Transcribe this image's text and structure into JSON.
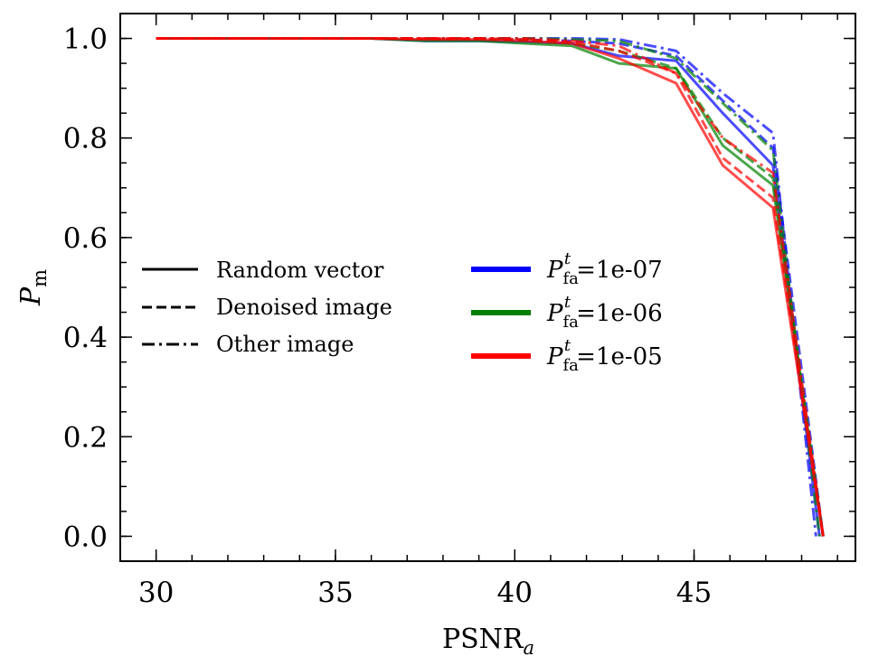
{
  "chart_data": {
    "type": "line",
    "title": "",
    "xlabel": "PSNR",
    "xlabel_sub": "a",
    "ylabel": "P",
    "ylabel_sub": "m",
    "xlim": [
      29,
      49.5
    ],
    "ylim": [
      -0.05,
      1.05
    ],
    "xticks": [
      30,
      35,
      40,
      45
    ],
    "xtick_labels": [
      "30",
      "35",
      "40",
      "45"
    ],
    "yticks": [
      0.0,
      0.2,
      0.4,
      0.6,
      0.8,
      1.0
    ],
    "ytick_labels": [
      "0.0",
      "0.2",
      "0.4",
      "0.6",
      "0.8",
      "1.0"
    ],
    "x_minor_step": 1,
    "y_minor_step": 0.05,
    "grid": false,
    "legend_style": {
      "placement": "center-left",
      "entries": [
        "Random vector",
        "Denoised image",
        "Other image"
      ],
      "dash": [
        "solid",
        "dashed",
        "dashdot"
      ]
    },
    "legend_threshold": {
      "placement": "center-right",
      "symbol": "P",
      "sub": "fa",
      "sup": "t",
      "entries": [
        "=1e-07",
        "=1e-06",
        "=1e-05"
      ],
      "colors": [
        "#0000ff",
        "#008000",
        "#ff0000"
      ]
    },
    "series": [
      {
        "name": "Random vector, P_fa^t=1e-07",
        "color": "#0000ff",
        "dash": "solid",
        "x": [
          30,
          35,
          36,
          37.5,
          39,
          40.3,
          41.6,
          42.9,
          44.5,
          45.8,
          47.2,
          48.5
        ],
        "y": [
          1.0,
          1.0,
          1.0,
          0.995,
          0.995,
          0.993,
          0.99,
          0.965,
          0.955,
          0.85,
          0.745,
          0.0
        ]
      },
      {
        "name": "Denoised image, P_fa^t=1e-07",
        "color": "#0000ff",
        "dash": "dashed",
        "x": [
          30,
          35,
          36,
          37.5,
          39,
          40.3,
          41.6,
          42.9,
          44.5,
          45.8,
          47.2,
          48.6
        ],
        "y": [
          1.0,
          1.0,
          1.0,
          0.998,
          0.998,
          0.997,
          0.995,
          0.99,
          0.965,
          0.875,
          0.78,
          0.0
        ]
      },
      {
        "name": "Other image, P_fa^t=1e-07",
        "color": "#0000ff",
        "dash": "dashdot",
        "x": [
          30,
          35,
          36,
          37.5,
          39,
          40.3,
          41.6,
          42.9,
          44.5,
          45.8,
          47.2,
          48.4
        ],
        "y": [
          1.0,
          1.0,
          1.0,
          1.0,
          1.0,
          1.0,
          1.0,
          0.998,
          0.975,
          0.89,
          0.81,
          0.0
        ]
      },
      {
        "name": "Random vector, P_fa^t=1e-06",
        "color": "#008000",
        "dash": "solid",
        "x": [
          30,
          35,
          36,
          37.5,
          39,
          40.3,
          41.6,
          42.9,
          44.5,
          45.8,
          47.2,
          48.6
        ],
        "y": [
          1.0,
          1.0,
          1.0,
          0.995,
          0.995,
          0.99,
          0.985,
          0.95,
          0.94,
          0.785,
          0.705,
          0.0
        ]
      },
      {
        "name": "Denoised image, P_fa^t=1e-06",
        "color": "#008000",
        "dash": "dashed",
        "x": [
          30,
          35,
          36,
          37.5,
          39,
          40.3,
          41.6,
          42.9,
          44.5,
          45.8,
          47.2,
          48.6
        ],
        "y": [
          1.0,
          1.0,
          1.0,
          0.998,
          0.998,
          0.996,
          0.99,
          0.975,
          0.94,
          0.8,
          0.72,
          0.0
        ]
      },
      {
        "name": "Other image, P_fa^t=1e-06",
        "color": "#008000",
        "dash": "dashdot",
        "x": [
          30,
          35,
          36,
          37.5,
          39,
          40.3,
          41.6,
          42.9,
          44.5,
          45.8,
          47.2,
          48.5
        ],
        "y": [
          1.0,
          1.0,
          1.0,
          1.0,
          1.0,
          1.0,
          0.998,
          0.995,
          0.96,
          0.87,
          0.775,
          0.0
        ]
      },
      {
        "name": "Random vector, P_fa^t=1e-05",
        "color": "#ff0000",
        "dash": "solid",
        "x": [
          30,
          35,
          36,
          37.5,
          39,
          40.3,
          41.6,
          42.9,
          44.5,
          45.8,
          47.2,
          48.6
        ],
        "y": [
          1.0,
          1.0,
          1.0,
          0.998,
          0.998,
          0.995,
          0.99,
          0.96,
          0.91,
          0.745,
          0.66,
          0.0
        ]
      },
      {
        "name": "Denoised image, P_fa^t=1e-05",
        "color": "#ff0000",
        "dash": "dashed",
        "x": [
          30,
          35,
          36,
          37.5,
          39,
          40.3,
          41.6,
          42.9,
          44.5,
          45.8,
          47.2,
          48.6
        ],
        "y": [
          1.0,
          1.0,
          1.0,
          1.0,
          1.0,
          0.998,
          0.993,
          0.975,
          0.93,
          0.76,
          0.68,
          0.0
        ]
      },
      {
        "name": "Other image, P_fa^t=1e-05",
        "color": "#ff0000",
        "dash": "dashdot",
        "x": [
          30,
          35,
          36,
          37.5,
          39,
          40.3,
          41.6,
          42.9,
          44.5,
          45.8,
          47.2,
          48.6
        ],
        "y": [
          1.0,
          1.0,
          1.0,
          1.0,
          1.0,
          1.0,
          0.995,
          0.985,
          0.93,
          0.8,
          0.73,
          0.0
        ]
      }
    ]
  }
}
